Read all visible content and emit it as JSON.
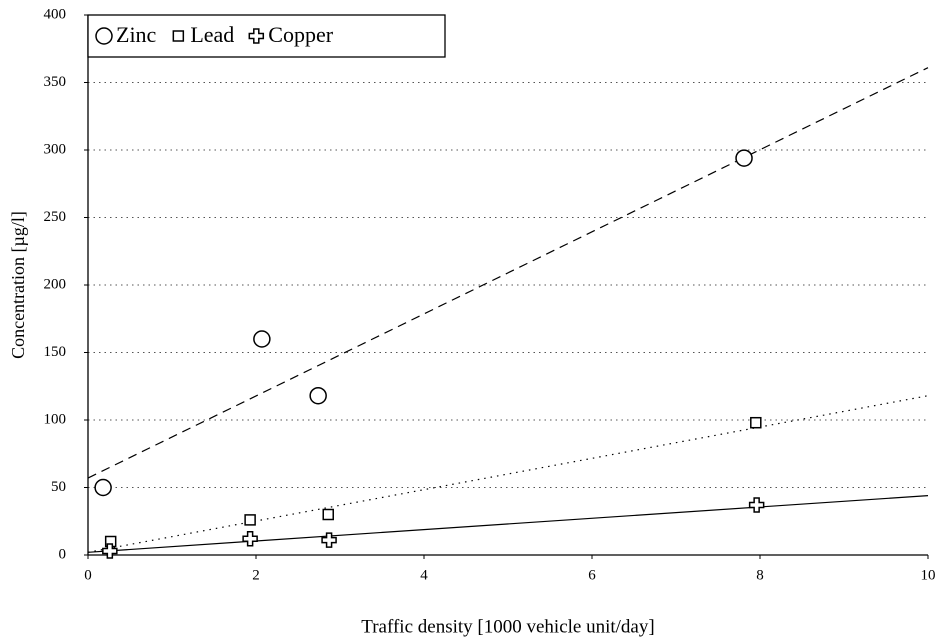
{
  "chart_data": {
    "type": "scatter",
    "xlabel": "Traffic density  [1000 vehicle unit/day]",
    "ylabel": "Concentration [µg/l]",
    "xlim": [
      0,
      10
    ],
    "xticks": [
      0,
      2,
      4,
      6,
      8,
      10
    ],
    "ylim": [
      0,
      400
    ],
    "yticks": [
      0,
      50,
      100,
      150,
      200,
      250,
      300,
      350,
      400
    ],
    "grid": true,
    "legend": "upper left",
    "series": [
      {
        "name": "Zinc",
        "color": "#000000",
        "marker": "circle",
        "line": "dashed",
        "x": [
          0.18,
          2.07,
          2.74,
          7.81
        ],
        "values": [
          50,
          160,
          118,
          294
        ],
        "trend": {
          "x": [
            0,
            10
          ],
          "values": [
            57,
            361
          ]
        }
      },
      {
        "name": "Lead",
        "color": "#000000",
        "marker": "square",
        "line": "dotted",
        "x": [
          0.27,
          1.93,
          2.86,
          7.95
        ],
        "values": [
          10,
          26,
          30,
          98
        ],
        "trend": {
          "x": [
            0,
            10
          ],
          "values": [
            2,
            118
          ]
        }
      },
      {
        "name": "Copper",
        "color": "#000000",
        "marker": "cross",
        "line": "solid",
        "x": [
          0.26,
          1.93,
          2.87,
          7.96
        ],
        "values": [
          3,
          12,
          11,
          37
        ],
        "trend": {
          "x": [
            0,
            10
          ],
          "values": [
            2,
            44
          ]
        }
      }
    ]
  }
}
